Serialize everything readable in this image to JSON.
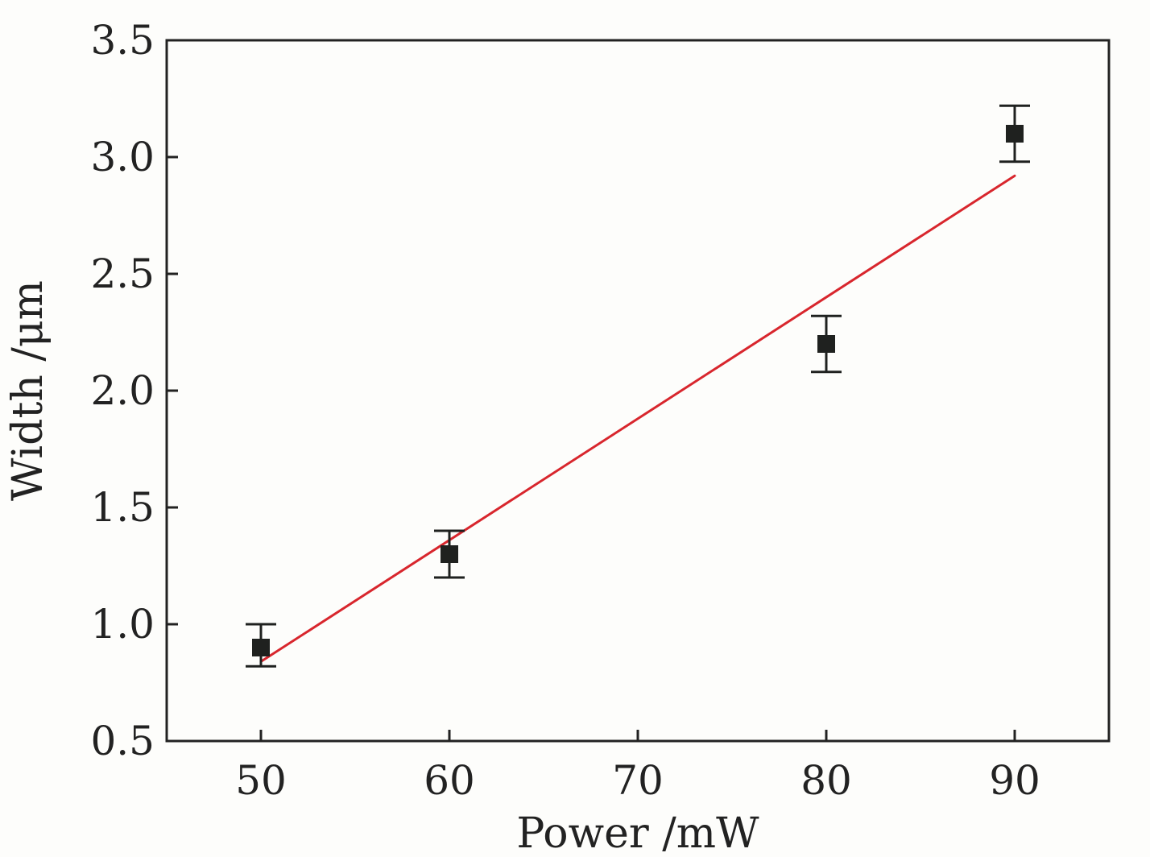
{
  "chart_data": {
    "type": "scatter",
    "xlabel": "Power /mW",
    "ylabel": "Width /μm",
    "xlim": [
      45,
      95
    ],
    "ylim": [
      0.5,
      3.5
    ],
    "x_ticks": [
      50,
      60,
      70,
      80,
      90
    ],
    "y_ticks": [
      0.5,
      1.0,
      1.5,
      2.0,
      2.5,
      3.0,
      3.5
    ],
    "grid": false,
    "legend": "none",
    "series": [
      {
        "kind": "points-with-error-bars",
        "x": [
          50,
          60,
          80,
          90
        ],
        "y": [
          0.9,
          1.3,
          2.2,
          3.1
        ],
        "error_upper": [
          1.0,
          1.4,
          2.32,
          3.22
        ],
        "error_lower": [
          0.82,
          1.2,
          2.08,
          2.98
        ]
      },
      {
        "kind": "linear-fit",
        "x": [
          50,
          90
        ],
        "y": [
          0.84,
          2.92
        ]
      }
    ],
    "colors": {
      "points": "#1f211f",
      "fit_line": "#d8262d",
      "axis": "#222222"
    }
  }
}
